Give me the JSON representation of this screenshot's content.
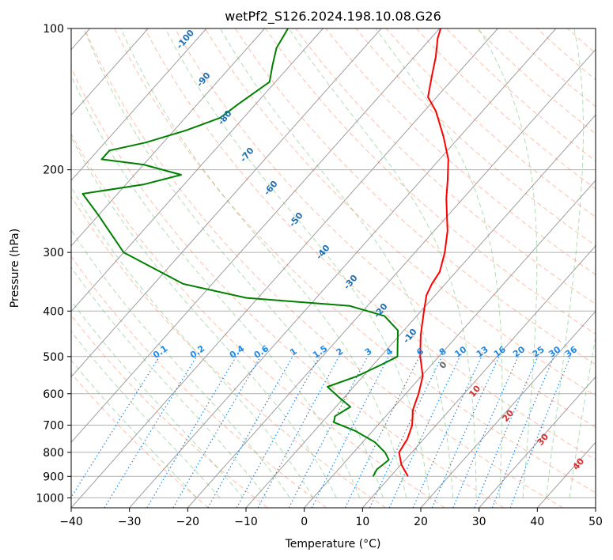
{
  "chart_data": {
    "type": "line",
    "title": "wetPf2_S126.2024.198.10.08.G26",
    "xlabel": "Temperature (°C)",
    "ylabel": "Pressure (hPa)",
    "xlim": [
      -40,
      50
    ],
    "ylim": [
      1050,
      100
    ],
    "yscale": "log",
    "skew": "skew-T log-P",
    "grid": true,
    "x_ticks": [
      "−40",
      "−30",
      "−20",
      "−10",
      "0",
      "10",
      "20",
      "30",
      "40",
      "50"
    ],
    "y_ticks": [
      "100",
      "200",
      "300",
      "400",
      "500",
      "600",
      "700",
      "800",
      "900",
      "1000"
    ],
    "colors": {
      "temperature": "#ff0000",
      "dewpoint": "#008000",
      "dry_adiabat": "#ff7043",
      "moist_adiabat": "#66bb6a",
      "mixing_ratio": "#1e88e5",
      "isotherm": "#9e9e9e"
    },
    "series": [
      {
        "key": "temperature",
        "pressure": [
          900,
          850,
          800,
          750,
          700,
          650,
          600,
          550,
          500,
          450,
          400,
          370,
          350,
          330,
          300,
          270,
          250,
          230,
          210,
          190,
          170,
          150,
          140,
          125,
          115,
          105,
          100
        ],
        "values": [
          13,
          10.1,
          7.8,
          7.2,
          5.9,
          3.7,
          2.2,
          0.2,
          -3.2,
          -6.4,
          -9.5,
          -11.5,
          -12.3,
          -12.8,
          -14.9,
          -17.7,
          -20.2,
          -22.9,
          -25.5,
          -28.5,
          -32.8,
          -38.0,
          -41.5,
          -44.3,
          -46.3,
          -48.8,
          -49.8
        ]
      },
      {
        "key": "dewpoint",
        "pressure": [
          900,
          870,
          830,
          800,
          760,
          720,
          690,
          670,
          640,
          610,
          580,
          550,
          520,
          500,
          470,
          440,
          410,
          390,
          375,
          350,
          300,
          250,
          225,
          215,
          205,
          195,
          190,
          182,
          175,
          165,
          155,
          145,
          130,
          120,
          110,
          100
        ],
        "values": [
          7.0,
          6.6,
          7.2,
          5.4,
          2.0,
          -3.0,
          -8.0,
          -8.7,
          -7.5,
          -11.0,
          -14.5,
          -11.0,
          -8.6,
          -7.1,
          -9.0,
          -11.0,
          -15.5,
          -23.0,
          -42.0,
          -55.0,
          -70.0,
          -80.0,
          -86.0,
          -77.0,
          -72.0,
          -80.0,
          -88.0,
          -88.0,
          -83.0,
          -78.0,
          -74.0,
          -73.0,
          -71.0,
          -73.0,
          -75.0,
          -76.0
        ]
      }
    ],
    "mixing_ratio_labels": [
      "0.1",
      "0.2",
      "0.4",
      "0.6",
      "1",
      "1.5",
      "2",
      "3",
      "4",
      "6",
      "8",
      "10",
      "13",
      "16",
      "20",
      "25",
      "30",
      "36"
    ],
    "dry_adiabat_labels": [
      "-100",
      "-90",
      "-80",
      "-70",
      "-60",
      "-50",
      "-40",
      "-30",
      "-20",
      "-10"
    ],
    "moist_adiabat_labels": [
      "0",
      "10",
      "20",
      "30",
      "40"
    ]
  }
}
